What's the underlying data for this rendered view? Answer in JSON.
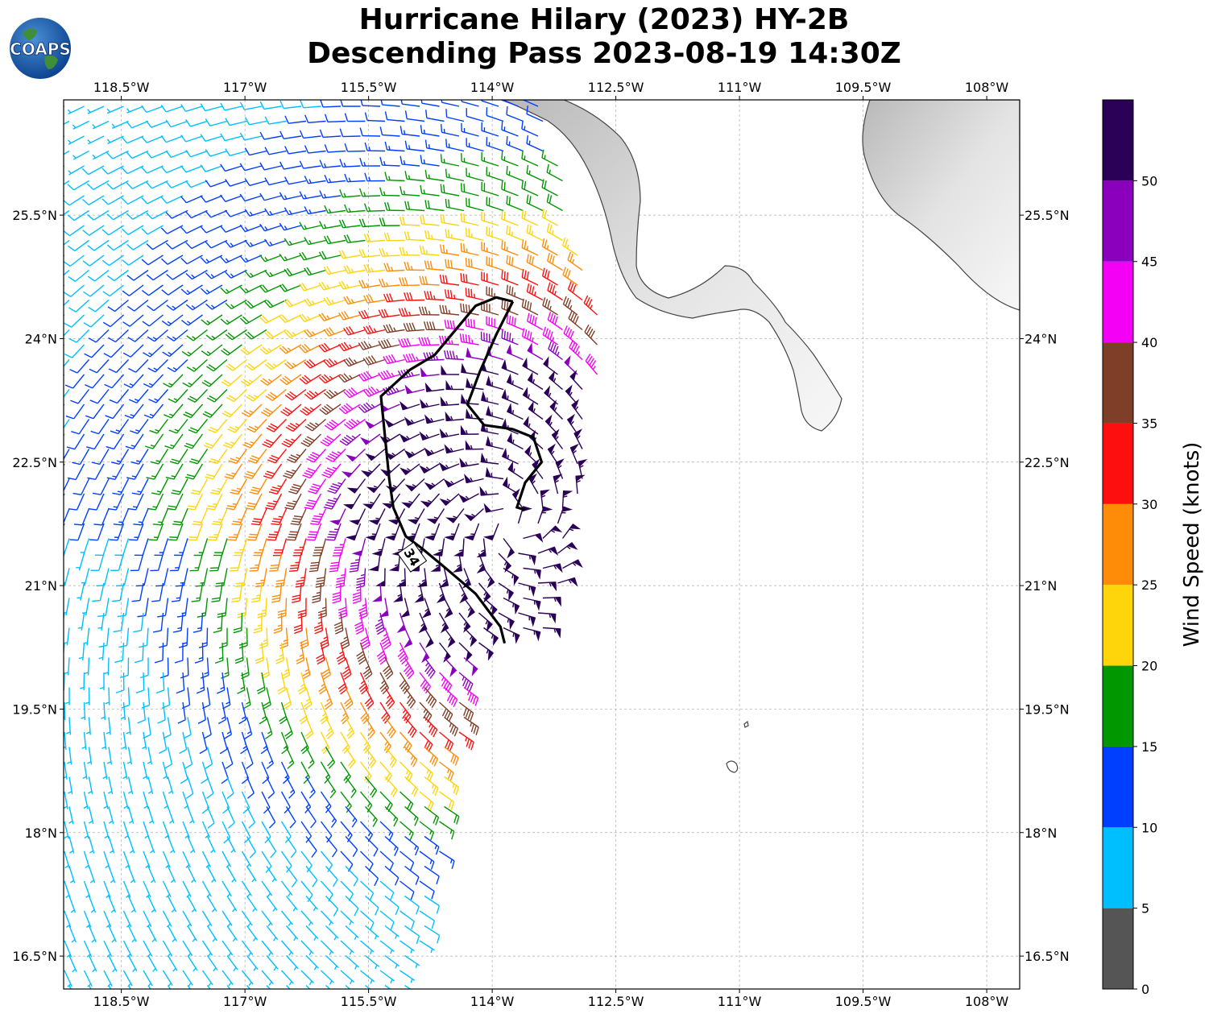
{
  "title": {
    "line1": "Hurricane Hilary (2023) HY-2B",
    "line2": "Descending Pass 2023-08-19 14:30Z"
  },
  "logo": {
    "text": "COAPS",
    "icon": "globe-logo-icon"
  },
  "map": {
    "lon_range": [
      -119.2,
      -107.6
    ],
    "lat_range": [
      16.1,
      26.9
    ],
    "lon_ticks": [
      {
        "value": -118.5,
        "label": "118.5°W"
      },
      {
        "value": -117.0,
        "label": "117°W"
      },
      {
        "value": -115.5,
        "label": "115.5°W"
      },
      {
        "value": -114.0,
        "label": "114°W"
      },
      {
        "value": -112.5,
        "label": "112.5°W"
      },
      {
        "value": -111.0,
        "label": "111°W"
      },
      {
        "value": -109.5,
        "label": "109.5°W"
      },
      {
        "value": -108.0,
        "label": "108°W"
      }
    ],
    "lat_ticks": [
      {
        "value": 25.5,
        "label": "25.5°N"
      },
      {
        "value": 24.0,
        "label": "24°N"
      },
      {
        "value": 22.5,
        "label": "22.5°N"
      },
      {
        "value": 21.0,
        "label": "21°N"
      },
      {
        "value": 19.5,
        "label": "19.5°N"
      },
      {
        "value": 18.0,
        "label": "18°N"
      },
      {
        "value": 16.5,
        "label": "16.5°N"
      }
    ],
    "gridlines": true,
    "storm_center": {
      "lon": -113.75,
      "lat": 21.75
    },
    "contour_label": "34",
    "contour_34kt": [
      [
        -113.75,
        24.45
      ],
      [
        -113.95,
        24.5
      ],
      [
        -114.2,
        24.4
      ],
      [
        -114.45,
        24.1
      ],
      [
        -114.7,
        23.8
      ],
      [
        -115.0,
        23.62
      ],
      [
        -115.35,
        23.3
      ],
      [
        -115.3,
        22.8
      ],
      [
        -115.25,
        22.3
      ],
      [
        -115.2,
        21.95
      ],
      [
        -115.05,
        21.6
      ],
      [
        -114.85,
        21.45
      ],
      [
        -114.55,
        21.2
      ],
      [
        -114.2,
        20.9
      ],
      [
        -113.9,
        20.5
      ],
      [
        -113.85,
        20.3
      ]
    ],
    "contour_34kt_inner": [
      [
        -113.75,
        24.45
      ],
      [
        -113.95,
        24.05
      ],
      [
        -114.15,
        23.6
      ],
      [
        -114.3,
        23.2
      ],
      [
        -114.1,
        22.95
      ],
      [
        -113.75,
        22.9
      ],
      [
        -113.5,
        22.8
      ],
      [
        -113.4,
        22.5
      ],
      [
        -113.6,
        22.25
      ],
      [
        -113.7,
        21.95
      ],
      [
        -113.6,
        21.92
      ]
    ]
  },
  "colorbar": {
    "label": "Wind Speed (knots)",
    "ticks": [
      "0",
      "5",
      "10",
      "15",
      "20",
      "25",
      "30",
      "35",
      "40",
      "45",
      "50"
    ],
    "levels": [
      0,
      5,
      10,
      15,
      20,
      25,
      30,
      35,
      40,
      45,
      50,
      55
    ],
    "colors": [
      "#555555",
      "#00bfff",
      "#003ffe",
      "#009700",
      "#fed50a",
      "#fe8c09",
      "#fe0f0f",
      "#7f3e27",
      "#f400f4",
      "#8b00bd",
      "#2b0057"
    ]
  }
}
